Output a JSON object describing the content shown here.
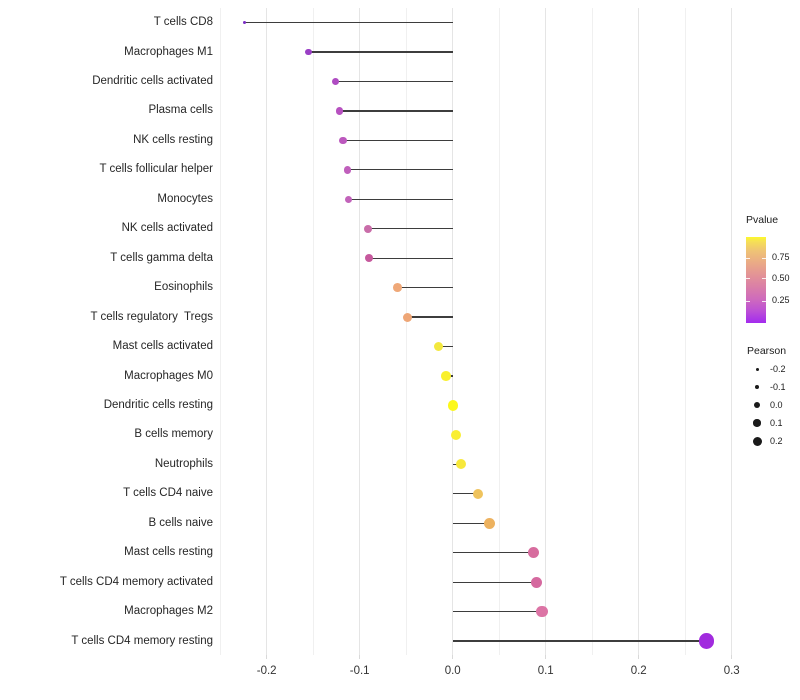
{
  "chart_data": {
    "type": "lollipop",
    "title": "",
    "xlabel": "",
    "ylabel": "",
    "orientation": "horizontal",
    "grid": "vertical-only",
    "xlim": [
      -0.25,
      0.305
    ],
    "x_ticks": [
      -0.2,
      -0.1,
      0.0,
      0.1,
      0.2,
      0.3
    ],
    "x_tick_labels": [
      "-0.2",
      "-0.1",
      "0.0",
      "0.1",
      "0.2",
      "0.3"
    ],
    "minor_grid_step": 0.05,
    "rows": [
      {
        "label": "T cells CD8",
        "pearson": -0.224,
        "color": "#7B2DC4",
        "size": 3.5
      },
      {
        "label": "Macrophages M1",
        "pearson": -0.155,
        "color": "#9A3FC5",
        "size": 6.7
      },
      {
        "label": "Dendritic cells activated",
        "pearson": -0.126,
        "color": "#AF4CC2",
        "size": 7.2
      },
      {
        "label": "Plasma cells",
        "pearson": -0.122,
        "color": "#B751C0",
        "size": 7.2
      },
      {
        "label": "NK cells resting",
        "pearson": -0.118,
        "color": "#BC58BE",
        "size": 7.3
      },
      {
        "label": "T cells follicular helper",
        "pearson": -0.113,
        "color": "#C05FBC",
        "size": 7.5
      },
      {
        "label": "Monocytes",
        "pearson": -0.112,
        "color": "#C263BA",
        "size": 7.5
      },
      {
        "label": "NK cells activated",
        "pearson": -0.091,
        "color": "#C96DA9",
        "size": 8.0
      },
      {
        "label": "T cells gamma delta",
        "pearson": -0.09,
        "color": "#C6599D",
        "size": 8.2
      },
      {
        "label": "Eosinophils",
        "pearson": -0.059,
        "color": "#EFA878",
        "size": 8.8
      },
      {
        "label": "T cells regulatory  Tregs",
        "pearson": -0.049,
        "color": "#EEA676",
        "size": 9.0
      },
      {
        "label": "Mast cells activated",
        "pearson": -0.015,
        "color": "#F3E83E",
        "size": 9.3
      },
      {
        "label": "Macrophages M0",
        "pearson": -0.007,
        "color": "#F9F02C",
        "size": 9.7
      },
      {
        "label": "Dendritic cells resting",
        "pearson": 0.0,
        "color": "#FCF819",
        "size": 10.2
      },
      {
        "label": "B cells memory",
        "pearson": 0.004,
        "color": "#F9EE33",
        "size": 10.0
      },
      {
        "label": "Neutrophils",
        "pearson": 0.009,
        "color": "#F7E83B",
        "size": 10.0
      },
      {
        "label": "T cells CD4 naive",
        "pearson": 0.027,
        "color": "#EFC35D",
        "size": 10.5
      },
      {
        "label": "B cells naive",
        "pearson": 0.04,
        "color": "#EDB25F",
        "size": 11.0
      },
      {
        "label": "Mast cells resting",
        "pearson": 0.087,
        "color": "#D76C9E",
        "size": 11.2
      },
      {
        "label": "T cells CD4 memory activated",
        "pearson": 0.09,
        "color": "#D5699F",
        "size": 11.3
      },
      {
        "label": "Macrophages M2",
        "pearson": 0.096,
        "color": "#DC74A5",
        "size": 11.6
      },
      {
        "label": "T cells CD4 memory resting",
        "pearson": 0.273,
        "color": "#A12BDE",
        "size": 15.5
      }
    ],
    "legend_pvalue": {
      "title": "Pvalue",
      "position": "right",
      "ticks": [
        {
          "label": "0.75",
          "frac_from_top": 0.242
        },
        {
          "label": "0.50",
          "frac_from_top": 0.48
        },
        {
          "label": "0.25",
          "frac_from_top": 0.742
        }
      ],
      "gradient_stops_bottom_to_top": [
        {
          "pos": 0.0,
          "color": "#A32BEE"
        },
        {
          "pos": 0.14,
          "color": "#BC50D6"
        },
        {
          "pos": 0.28,
          "color": "#CF6BBC"
        },
        {
          "pos": 0.42,
          "color": "#DA7FA7"
        },
        {
          "pos": 0.56,
          "color": "#E39396"
        },
        {
          "pos": 0.7,
          "color": "#EAAA86"
        },
        {
          "pos": 0.84,
          "color": "#EFC375"
        },
        {
          "pos": 0.95,
          "color": "#F6E055"
        },
        {
          "pos": 1.0,
          "color": "#FCF92C"
        }
      ]
    },
    "legend_pearson": {
      "title": "Pearson",
      "position": "right",
      "items": [
        {
          "label": "-0.2",
          "size": 3.0
        },
        {
          "label": "-0.1",
          "size": 4.7
        },
        {
          "label": "0.0",
          "size": 6.0
        },
        {
          "label": "0.1",
          "size": 7.3
        },
        {
          "label": "0.2",
          "size": 9.0
        }
      ]
    }
  },
  "colors": {
    "background": "#ffffff",
    "grid_major": "#E5E5E5",
    "grid_minor": "#F0F0F0",
    "axis_tick": "#D9D9D9",
    "stem": "#3d3d3d",
    "axis_text": "#333333",
    "label_text": "#262626",
    "legend_text": "#1a1a1a"
  }
}
